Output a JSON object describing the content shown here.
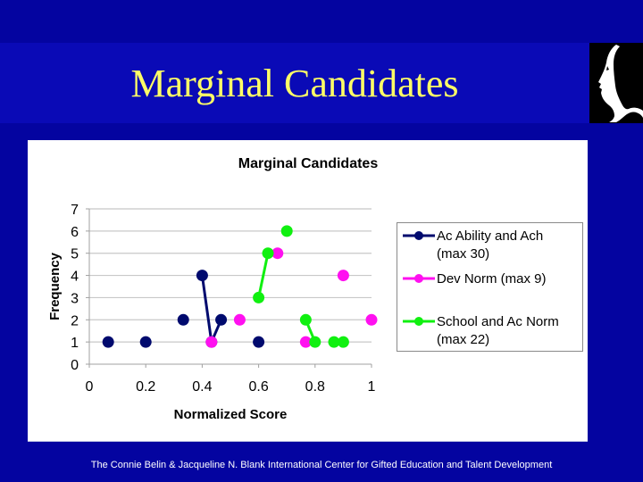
{
  "slide": {
    "title": "Marginal Candidates",
    "footer": "The Connie Belin & Jacqueline N. Blank International Center for Gifted Education and Talent Development",
    "logo_icon": "profile-silhouette-icon",
    "colors": {
      "background": "#0404a0",
      "title_band": "#0a0ab6",
      "title_text": "#ffff66",
      "footer_text": "#ffffff",
      "chart_panel": "#ffffff"
    }
  },
  "chart_data": {
    "type": "scatter",
    "title": "Marginal Candidates",
    "xlabel": "Normalized Score",
    "ylabel": "Frequency",
    "xlim": [
      0,
      1
    ],
    "ylim": [
      0,
      7
    ],
    "x_ticks": [
      "0",
      "0.2",
      "0.4",
      "0.6",
      "0.8",
      "1"
    ],
    "y_ticks": [
      "0",
      "1",
      "2",
      "3",
      "4",
      "5",
      "6",
      "7"
    ],
    "grid": "horizontal",
    "legend_position": "right",
    "series": [
      {
        "name": "Ac Ability and Ach (max 30)",
        "legend_line1": "Ac Ability and Ach",
        "legend_line2": "(max 30)",
        "color": "#000a6e",
        "points": [
          {
            "x": 0.067,
            "y": 1
          },
          {
            "x": 0.2,
            "y": 1
          },
          {
            "x": 0.333,
            "y": 2
          },
          {
            "x": 0.4,
            "y": 4
          },
          {
            "x": 0.433,
            "y": 1
          },
          {
            "x": 0.467,
            "y": 2
          },
          {
            "x": 0.6,
            "y": 1
          }
        ],
        "line_segments": [
          [
            3,
            4
          ],
          [
            4,
            5
          ]
        ]
      },
      {
        "name": "Dev Norm (max 9)",
        "legend_line1": "Dev Norm (max 9)",
        "legend_line2": "",
        "color": "#ff10f0",
        "points": [
          {
            "x": 0.433,
            "y": 1
          },
          {
            "x": 0.533,
            "y": 2
          },
          {
            "x": 0.667,
            "y": 5
          },
          {
            "x": 0.767,
            "y": 1
          },
          {
            "x": 0.9,
            "y": 4
          },
          {
            "x": 1.0,
            "y": 2
          }
        ],
        "line_segments": []
      },
      {
        "name": "School and Ac Norm (max 22)",
        "legend_line1": "School and Ac Norm",
        "legend_line2": "(max 22)",
        "color": "#10f010",
        "points": [
          {
            "x": 0.6,
            "y": 3
          },
          {
            "x": 0.633,
            "y": 5
          },
          {
            "x": 0.7,
            "y": 6
          },
          {
            "x": 0.767,
            "y": 2
          },
          {
            "x": 0.8,
            "y": 1
          },
          {
            "x": 0.867,
            "y": 1
          },
          {
            "x": 0.9,
            "y": 1
          }
        ],
        "line_segments": [
          [
            0,
            1
          ],
          [
            3,
            4
          ]
        ]
      }
    ]
  }
}
